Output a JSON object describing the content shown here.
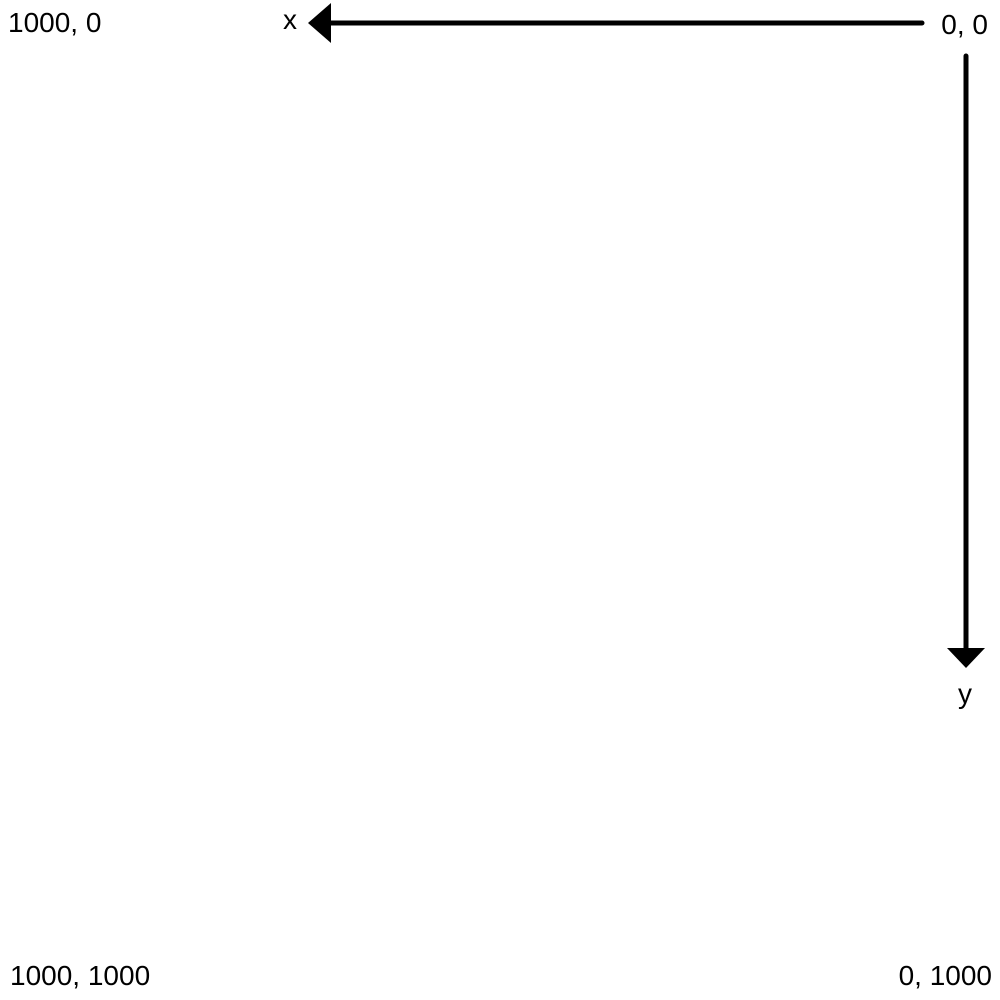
{
  "corners": {
    "top_left": "1000, 0",
    "top_right": "0, 0",
    "bottom_left": "1000, 1000",
    "bottom_right": "0, 1000"
  },
  "axes": {
    "x_label": "x",
    "y_label": "y",
    "x_direction": "right-to-left",
    "y_direction": "top-to-bottom"
  },
  "colors": {
    "background": "#ffffff",
    "ink": "#000000"
  }
}
